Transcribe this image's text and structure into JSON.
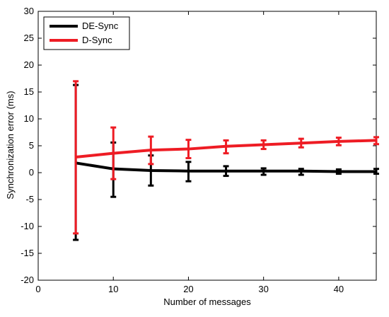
{
  "chart_data": {
    "type": "line",
    "title": "",
    "xlabel": "Number of messages",
    "ylabel": "Synchronization error (ms)",
    "xlim": [
      0,
      45
    ],
    "ylim": [
      -20,
      30
    ],
    "xticks": [
      0,
      10,
      20,
      30,
      40
    ],
    "yticks": [
      -20,
      -15,
      -10,
      -5,
      0,
      5,
      10,
      15,
      20,
      25,
      30
    ],
    "grid": false,
    "legend_position": "top-left",
    "x": [
      5,
      10,
      15,
      20,
      25,
      30,
      35,
      40,
      45
    ],
    "series": [
      {
        "name": "DE-Sync",
        "color": "#000000",
        "values": [
          1.8,
          0.7,
          0.4,
          0.3,
          0.3,
          0.3,
          0.3,
          0.2,
          0.2
        ],
        "error_low": [
          -12.5,
          -4.5,
          -2.4,
          -1.6,
          -0.6,
          -0.4,
          -0.4,
          -0.2,
          -0.2
        ],
        "error_high": [
          16.3,
          5.6,
          3.2,
          2.0,
          1.2,
          0.8,
          0.7,
          0.6,
          0.7
        ]
      },
      {
        "name": "D-Sync",
        "color": "#ee1c24",
        "values": [
          2.9,
          3.6,
          4.2,
          4.4,
          4.9,
          5.2,
          5.5,
          5.8,
          6.0
        ],
        "error_low": [
          -11.3,
          -1.2,
          1.6,
          2.7,
          3.6,
          4.4,
          4.7,
          5.1,
          5.3
        ],
        "error_high": [
          17.0,
          8.4,
          6.7,
          6.1,
          6.0,
          6.0,
          6.3,
          6.5,
          6.6
        ]
      }
    ]
  }
}
